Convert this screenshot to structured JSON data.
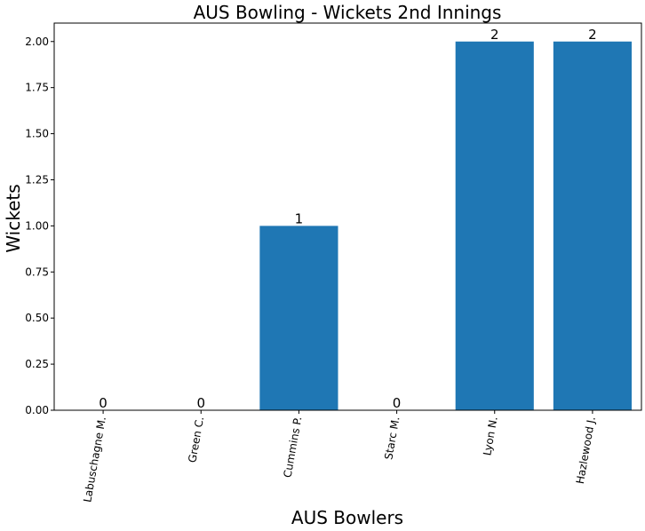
{
  "chart_data": {
    "type": "bar",
    "title": "AUS Bowling - Wickets 2nd Innings",
    "xlabel": "AUS Bowlers",
    "ylabel": "Wickets",
    "categories": [
      "Labuschagne M.",
      "Green C.",
      "Cummins P.",
      "Starc M.",
      "Lyon N.",
      "Hazlewood J."
    ],
    "values": [
      0,
      0,
      1,
      0,
      2,
      2
    ],
    "data_labels": [
      "0",
      "0",
      "1",
      "0",
      "2",
      "2"
    ],
    "yticks": [
      "0.00",
      "0.25",
      "0.50",
      "0.75",
      "1.00",
      "1.25",
      "1.50",
      "1.75",
      "2.00"
    ],
    "ylim": [
      0,
      2.1
    ],
    "grid": false,
    "bar_color": "#1f77b4",
    "xtick_rotation": "rotated"
  }
}
